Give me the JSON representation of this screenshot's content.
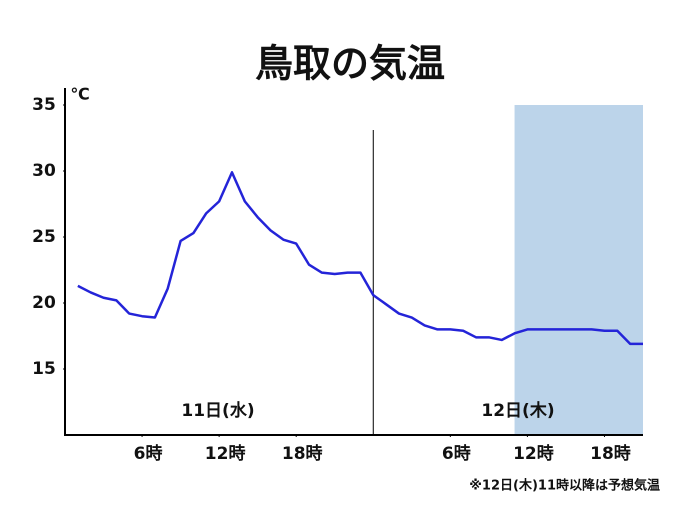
{
  "chart_data": {
    "type": "line",
    "title": "鳥取の気温",
    "y_unit": "℃",
    "x": [
      1,
      2,
      3,
      4,
      5,
      6,
      7,
      8,
      9,
      10,
      11,
      12,
      13,
      14,
      15,
      16,
      17,
      18,
      19,
      20,
      21,
      22,
      23,
      24,
      25,
      26,
      27,
      28,
      29,
      30,
      31,
      32,
      33,
      34,
      35,
      36,
      37,
      38,
      39,
      40,
      41,
      42,
      43,
      44,
      45
    ],
    "values": [
      21.3,
      20.8,
      20.4,
      20.2,
      19.2,
      19.0,
      18.9,
      21.1,
      24.7,
      25.3,
      26.8,
      27.7,
      29.9,
      27.7,
      26.5,
      25.5,
      24.8,
      24.5,
      22.9,
      22.3,
      22.2,
      22.3,
      22.3,
      20.6,
      19.9,
      19.2,
      18.9,
      18.3,
      18.0,
      18.0,
      17.9,
      17.4,
      17.4,
      17.2,
      17.7,
      18.0,
      18.0,
      18.0,
      18.0,
      18.0,
      18.0,
      17.9,
      17.9,
      16.9,
      16.9
    ],
    "color": "#2424d8",
    "xlim": [
      0,
      45
    ],
    "ylim": [
      10,
      35
    ],
    "xticks": [
      {
        "value": 6,
        "label": "6時"
      },
      {
        "value": 12,
        "label": "12時"
      },
      {
        "value": 18,
        "label": "18時"
      },
      {
        "value": 30,
        "label": "6時"
      },
      {
        "value": 36,
        "label": "12時"
      },
      {
        "value": 42,
        "label": "18時"
      }
    ],
    "yticks": [
      15,
      20,
      25,
      30,
      35
    ],
    "day_divider": 24,
    "day_labels": [
      "11日(水)",
      "12日(木)"
    ],
    "forecast_from": 35,
    "forecast_color": "#bcd4ea",
    "note": "※12日(木)11時以降は予想気温"
  }
}
